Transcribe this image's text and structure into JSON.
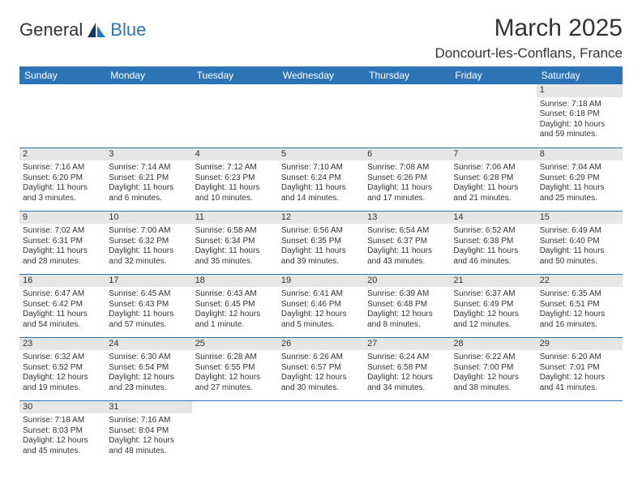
{
  "logo": {
    "part1": "General",
    "part2": "Blue"
  },
  "title": "March 2025",
  "location": "Doncourt-les-Conflans, France",
  "colors": {
    "header_bg": "#2d74b7",
    "daynum_bg": "#e6e6e6",
    "rule": "#2d74b7",
    "text": "#333333"
  },
  "day_headers": [
    "Sunday",
    "Monday",
    "Tuesday",
    "Wednesday",
    "Thursday",
    "Friday",
    "Saturday"
  ],
  "weeks": [
    [
      null,
      null,
      null,
      null,
      null,
      null,
      {
        "n": "1",
        "sunrise": "Sunrise: 7:18 AM",
        "sunset": "Sunset: 6:18 PM",
        "d1": "Daylight: 10 hours",
        "d2": "and 59 minutes."
      }
    ],
    [
      {
        "n": "2",
        "sunrise": "Sunrise: 7:16 AM",
        "sunset": "Sunset: 6:20 PM",
        "d1": "Daylight: 11 hours",
        "d2": "and 3 minutes."
      },
      {
        "n": "3",
        "sunrise": "Sunrise: 7:14 AM",
        "sunset": "Sunset: 6:21 PM",
        "d1": "Daylight: 11 hours",
        "d2": "and 6 minutes."
      },
      {
        "n": "4",
        "sunrise": "Sunrise: 7:12 AM",
        "sunset": "Sunset: 6:23 PM",
        "d1": "Daylight: 11 hours",
        "d2": "and 10 minutes."
      },
      {
        "n": "5",
        "sunrise": "Sunrise: 7:10 AM",
        "sunset": "Sunset: 6:24 PM",
        "d1": "Daylight: 11 hours",
        "d2": "and 14 minutes."
      },
      {
        "n": "6",
        "sunrise": "Sunrise: 7:08 AM",
        "sunset": "Sunset: 6:26 PM",
        "d1": "Daylight: 11 hours",
        "d2": "and 17 minutes."
      },
      {
        "n": "7",
        "sunrise": "Sunrise: 7:06 AM",
        "sunset": "Sunset: 6:28 PM",
        "d1": "Daylight: 11 hours",
        "d2": "and 21 minutes."
      },
      {
        "n": "8",
        "sunrise": "Sunrise: 7:04 AM",
        "sunset": "Sunset: 6:29 PM",
        "d1": "Daylight: 11 hours",
        "d2": "and 25 minutes."
      }
    ],
    [
      {
        "n": "9",
        "sunrise": "Sunrise: 7:02 AM",
        "sunset": "Sunset: 6:31 PM",
        "d1": "Daylight: 11 hours",
        "d2": "and 28 minutes."
      },
      {
        "n": "10",
        "sunrise": "Sunrise: 7:00 AM",
        "sunset": "Sunset: 6:32 PM",
        "d1": "Daylight: 11 hours",
        "d2": "and 32 minutes."
      },
      {
        "n": "11",
        "sunrise": "Sunrise: 6:58 AM",
        "sunset": "Sunset: 6:34 PM",
        "d1": "Daylight: 11 hours",
        "d2": "and 35 minutes."
      },
      {
        "n": "12",
        "sunrise": "Sunrise: 6:56 AM",
        "sunset": "Sunset: 6:35 PM",
        "d1": "Daylight: 11 hours",
        "d2": "and 39 minutes."
      },
      {
        "n": "13",
        "sunrise": "Sunrise: 6:54 AM",
        "sunset": "Sunset: 6:37 PM",
        "d1": "Daylight: 11 hours",
        "d2": "and 43 minutes."
      },
      {
        "n": "14",
        "sunrise": "Sunrise: 6:52 AM",
        "sunset": "Sunset: 6:38 PM",
        "d1": "Daylight: 11 hours",
        "d2": "and 46 minutes."
      },
      {
        "n": "15",
        "sunrise": "Sunrise: 6:49 AM",
        "sunset": "Sunset: 6:40 PM",
        "d1": "Daylight: 11 hours",
        "d2": "and 50 minutes."
      }
    ],
    [
      {
        "n": "16",
        "sunrise": "Sunrise: 6:47 AM",
        "sunset": "Sunset: 6:42 PM",
        "d1": "Daylight: 11 hours",
        "d2": "and 54 minutes."
      },
      {
        "n": "17",
        "sunrise": "Sunrise: 6:45 AM",
        "sunset": "Sunset: 6:43 PM",
        "d1": "Daylight: 11 hours",
        "d2": "and 57 minutes."
      },
      {
        "n": "18",
        "sunrise": "Sunrise: 6:43 AM",
        "sunset": "Sunset: 6:45 PM",
        "d1": "Daylight: 12 hours",
        "d2": "and 1 minute."
      },
      {
        "n": "19",
        "sunrise": "Sunrise: 6:41 AM",
        "sunset": "Sunset: 6:46 PM",
        "d1": "Daylight: 12 hours",
        "d2": "and 5 minutes."
      },
      {
        "n": "20",
        "sunrise": "Sunrise: 6:39 AM",
        "sunset": "Sunset: 6:48 PM",
        "d1": "Daylight: 12 hours",
        "d2": "and 8 minutes."
      },
      {
        "n": "21",
        "sunrise": "Sunrise: 6:37 AM",
        "sunset": "Sunset: 6:49 PM",
        "d1": "Daylight: 12 hours",
        "d2": "and 12 minutes."
      },
      {
        "n": "22",
        "sunrise": "Sunrise: 6:35 AM",
        "sunset": "Sunset: 6:51 PM",
        "d1": "Daylight: 12 hours",
        "d2": "and 16 minutes."
      }
    ],
    [
      {
        "n": "23",
        "sunrise": "Sunrise: 6:32 AM",
        "sunset": "Sunset: 6:52 PM",
        "d1": "Daylight: 12 hours",
        "d2": "and 19 minutes."
      },
      {
        "n": "24",
        "sunrise": "Sunrise: 6:30 AM",
        "sunset": "Sunset: 6:54 PM",
        "d1": "Daylight: 12 hours",
        "d2": "and 23 minutes."
      },
      {
        "n": "25",
        "sunrise": "Sunrise: 6:28 AM",
        "sunset": "Sunset: 6:55 PM",
        "d1": "Daylight: 12 hours",
        "d2": "and 27 minutes."
      },
      {
        "n": "26",
        "sunrise": "Sunrise: 6:26 AM",
        "sunset": "Sunset: 6:57 PM",
        "d1": "Daylight: 12 hours",
        "d2": "and 30 minutes."
      },
      {
        "n": "27",
        "sunrise": "Sunrise: 6:24 AM",
        "sunset": "Sunset: 6:58 PM",
        "d1": "Daylight: 12 hours",
        "d2": "and 34 minutes."
      },
      {
        "n": "28",
        "sunrise": "Sunrise: 6:22 AM",
        "sunset": "Sunset: 7:00 PM",
        "d1": "Daylight: 12 hours",
        "d2": "and 38 minutes."
      },
      {
        "n": "29",
        "sunrise": "Sunrise: 6:20 AM",
        "sunset": "Sunset: 7:01 PM",
        "d1": "Daylight: 12 hours",
        "d2": "and 41 minutes."
      }
    ],
    [
      {
        "n": "30",
        "sunrise": "Sunrise: 7:18 AM",
        "sunset": "Sunset: 8:03 PM",
        "d1": "Daylight: 12 hours",
        "d2": "and 45 minutes."
      },
      {
        "n": "31",
        "sunrise": "Sunrise: 7:16 AM",
        "sunset": "Sunset: 8:04 PM",
        "d1": "Daylight: 12 hours",
        "d2": "and 48 minutes."
      },
      null,
      null,
      null,
      null,
      null
    ]
  ]
}
